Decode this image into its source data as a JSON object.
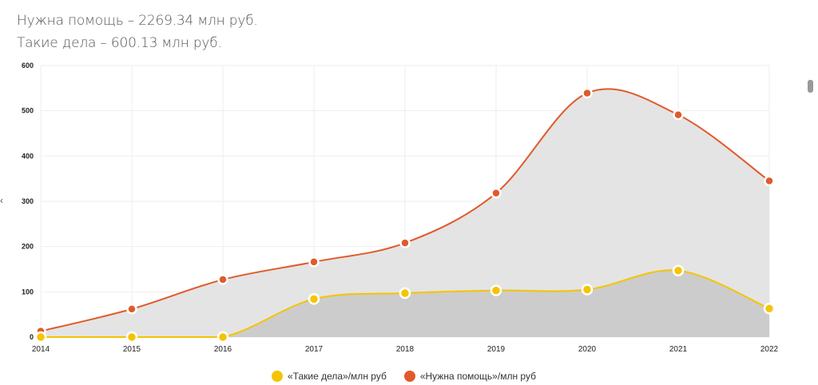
{
  "header": {
    "line1": "Нужна помощь – 2269.34 млн руб.",
    "line2": "Такие дела – 600.13 млн руб."
  },
  "nav": {
    "prev_icon": "‹"
  },
  "chart_data": {
    "type": "area",
    "title": "",
    "xlabel": "",
    "ylabel": "",
    "categories": [
      "2014",
      "2015",
      "2016",
      "2017",
      "2018",
      "2019",
      "2020",
      "2021",
      "2022"
    ],
    "ylim": [
      0,
      600
    ],
    "yticks": [
      0,
      100,
      200,
      300,
      400,
      500,
      600
    ],
    "grid": true,
    "legend_position": "bottom",
    "series": [
      {
        "name": "«Нужна помощь»/млн руб",
        "color": "#e05a2b",
        "fill": "#e4e4e4",
        "values": [
          13,
          62,
          127,
          166,
          208,
          318,
          539,
          491,
          345
        ]
      },
      {
        "name": "«Такие дела»/млн руб",
        "color": "#f5c400",
        "fill": "#cccccc",
        "values": [
          0,
          0,
          0,
          84,
          97,
          103,
          105,
          147,
          63
        ]
      }
    ]
  },
  "legend": [
    {
      "label": "«Такие дела»/млн руб",
      "color": "#f5c400"
    },
    {
      "label": "«Нужна помощь»/млн руб",
      "color": "#e05a2b"
    }
  ]
}
